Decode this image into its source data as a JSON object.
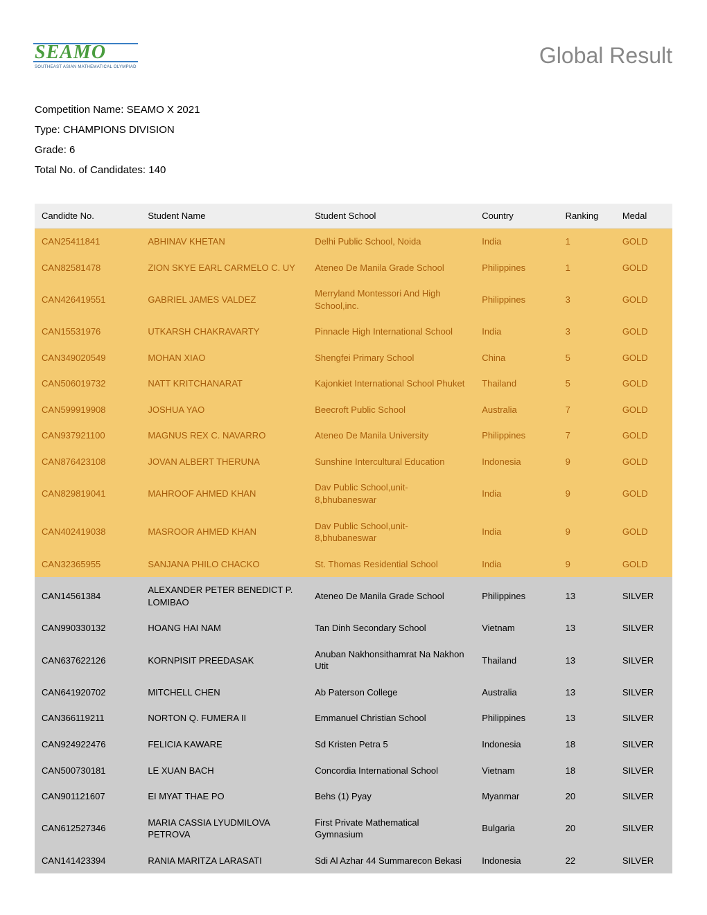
{
  "header": {
    "logo_main": "SEAMO",
    "logo_sub": "SOUTHEAST ASIAN MATHEMATICAL OLYMPIAD",
    "page_title": "Global Result"
  },
  "meta": {
    "competition_label": "Competition Name:",
    "competition_value": "SEAMO X 2021",
    "type_label": "Type:",
    "type_value": "CHAMPIONS DIVISION",
    "grade_label": "Grade:",
    "grade_value": "6",
    "total_label": "Total No. of Candidates:",
    "total_value": "140"
  },
  "table": {
    "columns": {
      "candidate": "Candidte No.",
      "name": "Student Name",
      "school": "Student School",
      "country": "Country",
      "ranking": "Ranking",
      "medal": "Medal"
    },
    "rows": [
      {
        "candidate": "CAN25411841",
        "name": "ABHINAV KHETAN",
        "school": "Delhi Public School, Noida",
        "country": "India",
        "ranking": "1",
        "medal": "GOLD"
      },
      {
        "candidate": "CAN82581478",
        "name": "ZION SKYE EARL CARMELO C. UY",
        "school": "Ateneo De Manila Grade School",
        "country": "Philippines",
        "ranking": "1",
        "medal": "GOLD"
      },
      {
        "candidate": "CAN426419551",
        "name": "GABRIEL JAMES VALDEZ",
        "school": "Merryland Montessori And High School,inc.",
        "country": "Philippines",
        "ranking": "3",
        "medal": "GOLD"
      },
      {
        "candidate": "CAN15531976",
        "name": "UTKARSH CHAKRAVARTY",
        "school": "Pinnacle High International School",
        "country": "India",
        "ranking": "3",
        "medal": "GOLD"
      },
      {
        "candidate": "CAN349020549",
        "name": "MOHAN XIAO",
        "school": "Shengfei Primary School",
        "country": "China",
        "ranking": "5",
        "medal": "GOLD"
      },
      {
        "candidate": "CAN506019732",
        "name": "NATT KRITCHANARAT",
        "school": "Kajonkiet International School Phuket",
        "country": "Thailand",
        "ranking": "5",
        "medal": "GOLD"
      },
      {
        "candidate": "CAN599919908",
        "name": "JOSHUA YAO",
        "school": "Beecroft Public School",
        "country": "Australia",
        "ranking": "7",
        "medal": "GOLD"
      },
      {
        "candidate": "CAN937921100",
        "name": "MAGNUS REX C. NAVARRO",
        "school": "Ateneo De Manila University",
        "country": "Philippines",
        "ranking": "7",
        "medal": "GOLD"
      },
      {
        "candidate": "CAN876423108",
        "name": "JOVAN ALBERT THERUNA",
        "school": "Sunshine Intercultural Education",
        "country": "Indonesia",
        "ranking": "9",
        "medal": "GOLD"
      },
      {
        "candidate": "CAN829819041",
        "name": "MAHROOF AHMED KHAN",
        "school": "Dav Public School,unit-8,bhubaneswar",
        "country": "India",
        "ranking": "9",
        "medal": "GOLD"
      },
      {
        "candidate": "CAN402419038",
        "name": "MASROOR AHMED KHAN",
        "school": "Dav Public School,unit-8,bhubaneswar",
        "country": "India",
        "ranking": "9",
        "medal": "GOLD"
      },
      {
        "candidate": "CAN32365955",
        "name": "SANJANA PHILO CHACKO",
        "school": "St. Thomas Residential School",
        "country": "India",
        "ranking": "9",
        "medal": "GOLD"
      },
      {
        "candidate": "CAN14561384",
        "name": "ALEXANDER PETER BENEDICT P. LOMIBAO",
        "school": "Ateneo De Manila Grade School",
        "country": "Philippines",
        "ranking": "13",
        "medal": "SILVER"
      },
      {
        "candidate": "CAN990330132",
        "name": "HOANG HAI NAM",
        "school": "Tan Dinh Secondary School",
        "country": "Vietnam",
        "ranking": "13",
        "medal": "SILVER"
      },
      {
        "candidate": "CAN637622126",
        "name": "KORNPISIT PREEDASAK",
        "school": "Anuban Nakhonsithamrat Na Nakhon Utit",
        "country": "Thailand",
        "ranking": "13",
        "medal": "SILVER"
      },
      {
        "candidate": "CAN641920702",
        "name": "MITCHELL CHEN",
        "school": "Ab Paterson College",
        "country": "Australia",
        "ranking": "13",
        "medal": "SILVER"
      },
      {
        "candidate": "CAN366119211",
        "name": "NORTON Q. FUMERA II",
        "school": "Emmanuel Christian School",
        "country": "Philippines",
        "ranking": "13",
        "medal": "SILVER"
      },
      {
        "candidate": "CAN924922476",
        "name": "FELICIA KAWARE",
        "school": "Sd Kristen Petra 5",
        "country": "Indonesia",
        "ranking": "18",
        "medal": "SILVER"
      },
      {
        "candidate": "CAN500730181",
        "name": "LE XUAN BACH",
        "school": "Concordia International School",
        "country": "Vietnam",
        "ranking": "18",
        "medal": "SILVER"
      },
      {
        "candidate": "CAN901121607",
        "name": "EI MYAT THAE PO",
        "school": "Behs (1) Pyay",
        "country": "Myanmar",
        "ranking": "20",
        "medal": "SILVER"
      },
      {
        "candidate": "CAN612527346",
        "name": "MARIA CASSIA LYUDMILOVA PETROVA",
        "school": "First Private Mathematical Gymnasium",
        "country": "Bulgaria",
        "ranking": "20",
        "medal": "SILVER"
      },
      {
        "candidate": "CAN141423394",
        "name": "RANIA MARITZA LARASATI",
        "school": "Sdi Al Azhar 44 Summarecon Bekasi",
        "country": "Indonesia",
        "ranking": "22",
        "medal": "SILVER"
      }
    ],
    "medal_colors": {
      "GOLD": {
        "bg": "#f4ca70",
        "fg": "#a45b0a"
      },
      "SILVER": {
        "bg": "#cccccc",
        "fg": "#000000"
      }
    }
  }
}
